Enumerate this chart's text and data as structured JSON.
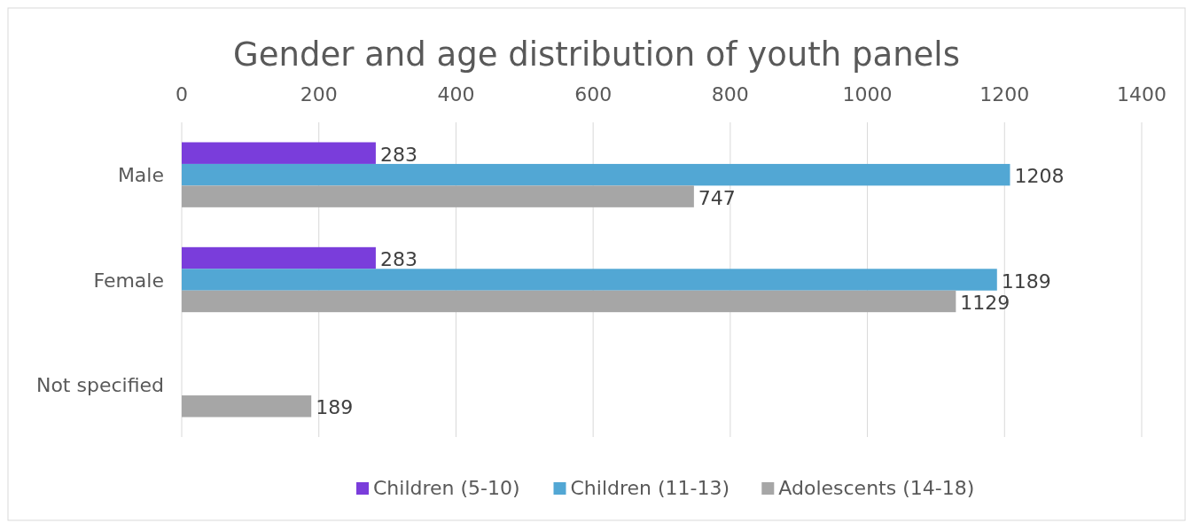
{
  "chart_data": {
    "type": "bar",
    "orientation": "horizontal",
    "title": "Gender and age distribution of youth panels",
    "categories": [
      "Male",
      "Female",
      "Not specified"
    ],
    "series": [
      {
        "name": "Children (5-10)",
        "color": "#7a3ddb",
        "values": [
          283,
          283,
          null
        ]
      },
      {
        "name": "Children (11-13)",
        "color": "#52a7d4",
        "values": [
          1208,
          1189,
          null
        ]
      },
      {
        "name": "Adolescents (14-18)",
        "color": "#a6a6a6",
        "values": [
          747,
          1129,
          189
        ]
      }
    ],
    "xlim": [
      0,
      1400
    ],
    "xticks": [
      0,
      200,
      400,
      600,
      800,
      1000,
      1200,
      1400
    ],
    "grid": "x",
    "legend": "bottom",
    "data_labels": true
  }
}
